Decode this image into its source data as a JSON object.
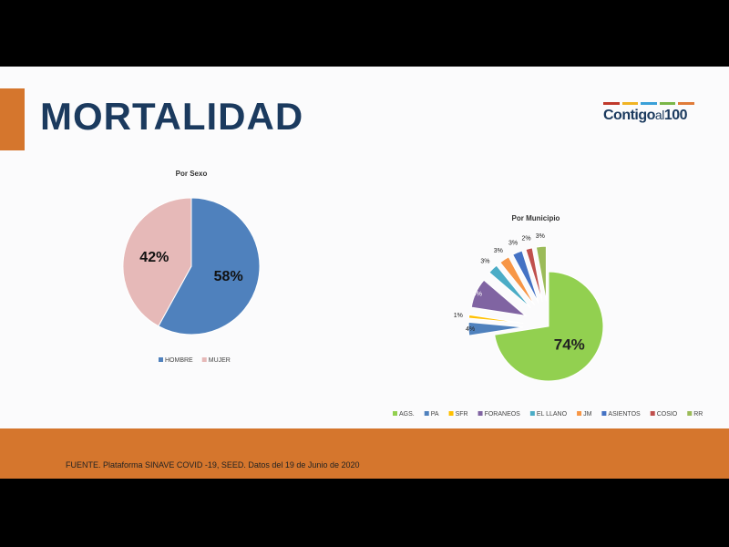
{
  "title": "MORTALIDAD",
  "logo": {
    "text_main": "Contigo",
    "text_al": "al",
    "text_num": "100",
    "bar_colors": [
      "#c0392b",
      "#f0b323",
      "#3aa0d8",
      "#7ab648",
      "#e07b39"
    ]
  },
  "footer": {
    "source": "FUENTE. Plataforma SINAVE COVID -19, SEED. Datos del 19 de Junio de 2020"
  },
  "chart_data": [
    {
      "type": "pie",
      "title": "Por Sexo",
      "categories": [
        "HOMBRE",
        "MUJER"
      ],
      "values": [
        58,
        42
      ],
      "labels": [
        "58%",
        "42%"
      ],
      "colors": [
        "#4f81bd",
        "#e6b9b8"
      ],
      "legend": "bottom"
    },
    {
      "type": "pie",
      "title": "Por Municipio",
      "categories": [
        "AGS.",
        "PA",
        "SFR",
        "FORANEOS",
        "EL LLANO",
        "JM",
        "ASIENTOS",
        "COSIO",
        "RR"
      ],
      "values": [
        74,
        4,
        1,
        9,
        3,
        3,
        3,
        2,
        3
      ],
      "labels": [
        "74%",
        "4%",
        "1%",
        "9%",
        "3%",
        "3%",
        "3%",
        "2%",
        "3%"
      ],
      "colors": [
        "#92d050",
        "#4f81bd",
        "#ffc000",
        "#8064a2",
        "#4bacc6",
        "#f79646",
        "#4472c4",
        "#c0504d",
        "#9bbb59"
      ],
      "legend": "bottom"
    }
  ]
}
